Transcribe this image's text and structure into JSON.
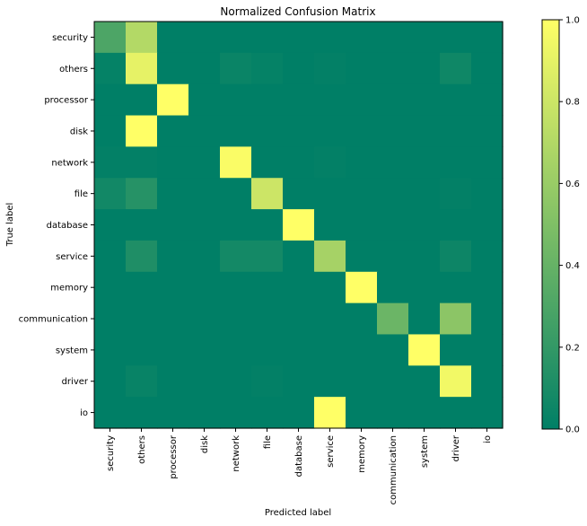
{
  "chart_data": {
    "type": "heatmap",
    "title": "Normalized Confusion Matrix",
    "xlabel": "Predicted label",
    "ylabel": "True label",
    "row_labels": [
      "security",
      "others",
      "processor",
      "disk",
      "network",
      "file",
      "database",
      "service",
      "memory",
      "communication",
      "system",
      "driver",
      "io"
    ],
    "col_labels": [
      "security",
      "others",
      "processor",
      "disk",
      "network",
      "file",
      "database",
      "service",
      "memory",
      "communication",
      "system",
      "driver",
      "io"
    ],
    "values": [
      [
        0.3,
        0.7,
        0,
        0,
        0,
        0,
        0,
        0,
        0,
        0,
        0,
        0,
        0
      ],
      [
        0.02,
        0.9,
        0,
        0,
        0.04,
        0.02,
        0,
        0.01,
        0,
        0,
        0,
        0.06,
        0
      ],
      [
        0,
        0,
        1.0,
        0,
        0,
        0,
        0,
        0,
        0,
        0,
        0,
        0,
        0
      ],
      [
        0,
        1.0,
        0,
        0,
        0,
        0,
        0,
        0,
        0,
        0,
        0,
        0,
        0
      ],
      [
        0.01,
        0.01,
        0,
        0,
        0.98,
        0,
        0,
        0.01,
        0,
        0,
        0,
        0,
        0
      ],
      [
        0.07,
        0.15,
        0,
        0,
        0,
        0.8,
        0,
        0,
        0,
        0,
        0,
        0.01,
        0
      ],
      [
        0,
        0,
        0,
        0,
        0,
        0,
        1.0,
        0,
        0,
        0,
        0,
        0,
        0
      ],
      [
        0,
        0.12,
        0,
        0,
        0.08,
        0.08,
        0,
        0.65,
        0,
        0,
        0,
        0.05,
        0
      ],
      [
        0,
        0,
        0,
        0,
        0,
        0,
        0,
        0,
        1.0,
        0,
        0,
        0,
        0
      ],
      [
        0,
        0,
        0,
        0,
        0,
        0,
        0,
        0,
        0,
        0.42,
        0,
        0.55,
        0
      ],
      [
        0,
        0,
        0,
        0,
        0,
        0,
        0,
        0,
        0,
        0,
        1.0,
        0,
        0
      ],
      [
        0,
        0.03,
        0,
        0,
        0,
        0.01,
        0,
        0,
        0,
        0,
        0,
        0.95,
        0
      ],
      [
        0,
        0,
        0,
        0,
        0,
        0,
        0,
        1.0,
        0,
        0,
        0,
        0,
        0
      ]
    ],
    "colorbar": {
      "range": [
        0,
        1
      ],
      "ticks": [
        "0.0",
        "0.2",
        "0.4",
        "0.6",
        "0.8",
        "1.0"
      ]
    },
    "colormap": [
      "#007f66",
      "#ffff66"
    ]
  }
}
